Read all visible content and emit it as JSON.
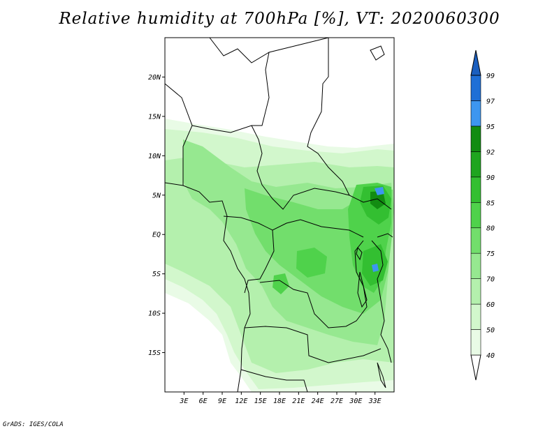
{
  "title": "Relative humidity at 700hPa [%], VT: 2020060300",
  "credit": "GrADS: IGES/COLA",
  "map": {
    "lon_range": [
      0,
      36
    ],
    "lat_range": [
      -20,
      25
    ],
    "lat_ticks": [
      {
        "value": 20,
        "label": "20N"
      },
      {
        "value": 15,
        "label": "15N"
      },
      {
        "value": 10,
        "label": "10N"
      },
      {
        "value": 5,
        "label": "5N"
      },
      {
        "value": 0,
        "label": "EQ"
      },
      {
        "value": -5,
        "label": "5S"
      },
      {
        "value": -10,
        "label": "10S"
      },
      {
        "value": -15,
        "label": "15S"
      }
    ],
    "lon_ticks": [
      {
        "value": 3,
        "label": "3E"
      },
      {
        "value": 6,
        "label": "6E"
      },
      {
        "value": 9,
        "label": "9E"
      },
      {
        "value": 12,
        "label": "12E"
      },
      {
        "value": 15,
        "label": "15E"
      },
      {
        "value": 18,
        "label": "18E"
      },
      {
        "value": 21,
        "label": "21E"
      },
      {
        "value": 24,
        "label": "24E"
      },
      {
        "value": 27,
        "label": "27E"
      },
      {
        "value": 30,
        "label": "30E"
      },
      {
        "value": 33,
        "label": "33E"
      }
    ]
  },
  "colorbar": {
    "levels": [
      {
        "label": "40",
        "color": "#ffffff"
      },
      {
        "label": "50",
        "color": "#e9fbe6"
      },
      {
        "label": "60",
        "color": "#d2f7cc"
      },
      {
        "label": "70",
        "color": "#b4f0ad"
      },
      {
        "label": "75",
        "color": "#96e890"
      },
      {
        "label": "80",
        "color": "#72de6c"
      },
      {
        "label": "85",
        "color": "#4fd24b"
      },
      {
        "label": "90",
        "color": "#33bf31"
      },
      {
        "label": "92",
        "color": "#1fa51f"
      },
      {
        "label": "95",
        "color": "#128c12"
      },
      {
        "label": "97",
        "color": "#3d96f0"
      },
      {
        "label": "99",
        "color": "#1f6fd6"
      }
    ],
    "top_color": "#1b5fbf"
  }
}
